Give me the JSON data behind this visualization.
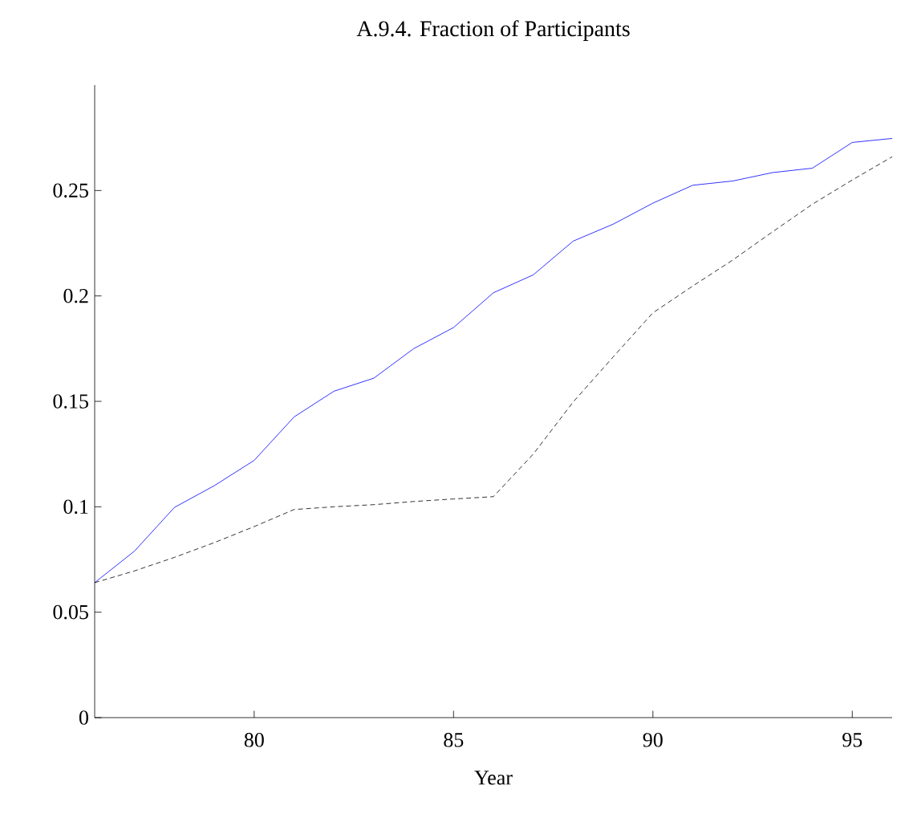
{
  "chart_data": {
    "type": "line",
    "title": "A.9.4. Fraction of Participants",
    "xlabel": "Year",
    "x": [
      76,
      77,
      78,
      79,
      80,
      81,
      82,
      83,
      84,
      85,
      86,
      87,
      88,
      89,
      90,
      91,
      92,
      93,
      94,
      95,
      96
    ],
    "series": [
      {
        "color": "#0000ff",
        "line_style": "solid",
        "values": [
          0.064,
          0.079,
          0.0997,
          0.11,
          0.122,
          0.1426,
          0.1548,
          0.161,
          0.175,
          0.185,
          0.2015,
          0.21,
          0.226,
          0.234,
          0.244,
          0.2525,
          0.2545,
          0.2585,
          0.2606,
          0.2728,
          0.2747
        ]
      },
      {
        "color": "#000000",
        "line_style": "dashed",
        "values": [
          0.064,
          0.0696,
          0.076,
          0.083,
          0.0906,
          0.0987,
          0.1,
          0.101,
          0.1025,
          0.1037,
          0.1048,
          0.125,
          0.1497,
          0.171,
          0.192,
          0.2047,
          0.217,
          0.2304,
          0.2435,
          0.255,
          0.266
        ]
      }
    ],
    "xlim": [
      76,
      96
    ],
    "ylim": [
      0,
      0.3
    ],
    "xticks": [
      80,
      85,
      90,
      95
    ],
    "yticks": [
      0,
      0.05,
      0.1,
      0.15,
      0.2,
      0.25
    ],
    "grid": false,
    "marker": "none"
  }
}
